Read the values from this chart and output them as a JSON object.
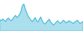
{
  "values": [
    42,
    38,
    45,
    40,
    35,
    44,
    48,
    42,
    38,
    45,
    52,
    58,
    50,
    55,
    62,
    75,
    95,
    100,
    82,
    68,
    55,
    48,
    40,
    35,
    42,
    50,
    38,
    34,
    44,
    52,
    38,
    30,
    26,
    32,
    38,
    44,
    33,
    28,
    22,
    27,
    33,
    38,
    32,
    28,
    34,
    40,
    36,
    30,
    34,
    38,
    35,
    32,
    28,
    33,
    36,
    40,
    33,
    28,
    32,
    35
  ],
  "line_color": "#45b8d8",
  "fill_color": "#45b8d8",
  "fill_alpha": 0.45,
  "background_color": "#ffffff",
  "line_width": 0.7
}
